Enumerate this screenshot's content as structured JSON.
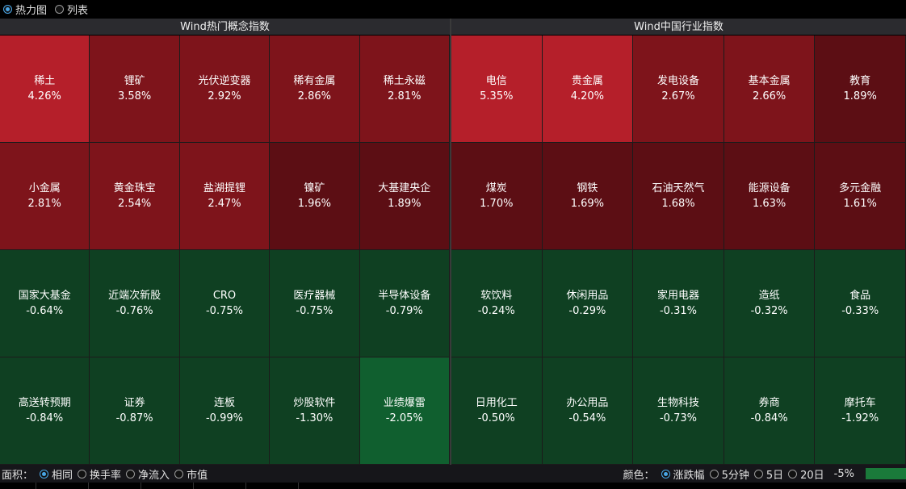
{
  "view_toggle": {
    "options": [
      {
        "label": "热力图",
        "selected": true
      },
      {
        "label": "列表",
        "selected": false
      }
    ]
  },
  "panels": [
    {
      "title": "Wind热门概念指数",
      "cells": [
        {
          "name": "稀土",
          "value": "4.26%",
          "color": "#b51f2a"
        },
        {
          "name": "锂矿",
          "value": "3.58%",
          "color": "#7e141b"
        },
        {
          "name": "光伏逆变器",
          "value": "2.92%",
          "color": "#7e141b"
        },
        {
          "name": "稀有金属",
          "value": "2.86%",
          "color": "#7e141b"
        },
        {
          "name": "稀土永磁",
          "value": "2.81%",
          "color": "#7e141b"
        },
        {
          "name": "小金属",
          "value": "2.81%",
          "color": "#7e141b"
        },
        {
          "name": "黄金珠宝",
          "value": "2.54%",
          "color": "#7e141b"
        },
        {
          "name": "盐湖提锂",
          "value": "2.47%",
          "color": "#7e141b"
        },
        {
          "name": "镍矿",
          "value": "1.96%",
          "color": "#5c0e14"
        },
        {
          "name": "大基建央企",
          "value": "1.89%",
          "color": "#5c0e14"
        },
        {
          "name": "国家大基金",
          "value": "-0.64%",
          "color": "#0f4022"
        },
        {
          "name": "近端次新股",
          "value": "-0.76%",
          "color": "#0f4022"
        },
        {
          "name": "CRO",
          "value": "-0.75%",
          "color": "#0f4022"
        },
        {
          "name": "医疗器械",
          "value": "-0.75%",
          "color": "#0f4022"
        },
        {
          "name": "半导体设备",
          "value": "-0.79%",
          "color": "#0f4022"
        },
        {
          "name": "高送转预期",
          "value": "-0.84%",
          "color": "#0f4022"
        },
        {
          "name": "证券",
          "value": "-0.87%",
          "color": "#0f4022"
        },
        {
          "name": "连板",
          "value": "-0.99%",
          "color": "#0f4022"
        },
        {
          "name": "炒股软件",
          "value": "-1.30%",
          "color": "#0f4022"
        },
        {
          "name": "业绩爆雷",
          "value": "-2.05%",
          "color": "#105f2f"
        }
      ]
    },
    {
      "title": "Wind中国行业指数",
      "cells": [
        {
          "name": "电信",
          "value": "5.35%",
          "color": "#b51f2a"
        },
        {
          "name": "贵金属",
          "value": "4.20%",
          "color": "#b51f2a"
        },
        {
          "name": "发电设备",
          "value": "2.67%",
          "color": "#7e141b"
        },
        {
          "name": "基本金属",
          "value": "2.66%",
          "color": "#7e141b"
        },
        {
          "name": "教育",
          "value": "1.89%",
          "color": "#5c0e14"
        },
        {
          "name": "煤炭",
          "value": "1.70%",
          "color": "#5c0e14"
        },
        {
          "name": "钢铁",
          "value": "1.69%",
          "color": "#5c0e14"
        },
        {
          "name": "石油天然气",
          "value": "1.68%",
          "color": "#5c0e14"
        },
        {
          "name": "能源设备",
          "value": "1.63%",
          "color": "#5c0e14"
        },
        {
          "name": "多元金融",
          "value": "1.61%",
          "color": "#5c0e14"
        },
        {
          "name": "软饮料",
          "value": "-0.24%",
          "color": "#0f4022"
        },
        {
          "name": "休闲用品",
          "value": "-0.29%",
          "color": "#0f4022"
        },
        {
          "name": "家用电器",
          "value": "-0.31%",
          "color": "#0f4022"
        },
        {
          "name": "造纸",
          "value": "-0.32%",
          "color": "#0f4022"
        },
        {
          "name": "食品",
          "value": "-0.33%",
          "color": "#0f4022"
        },
        {
          "name": "日用化工",
          "value": "-0.50%",
          "color": "#0f4022"
        },
        {
          "name": "办公用品",
          "value": "-0.54%",
          "color": "#0f4022"
        },
        {
          "name": "生物科技",
          "value": "-0.73%",
          "color": "#0f4022"
        },
        {
          "name": "券商",
          "value": "-0.84%",
          "color": "#0f4022"
        },
        {
          "name": "摩托车",
          "value": "-1.92%",
          "color": "#0f4022"
        }
      ]
    }
  ],
  "area_options": {
    "label": "面积：",
    "options": [
      {
        "label": "相同",
        "selected": true
      },
      {
        "label": "换手率",
        "selected": false
      },
      {
        "label": "净流入",
        "selected": false
      },
      {
        "label": "市值",
        "selected": false
      }
    ]
  },
  "color_options": {
    "label": "颜色：",
    "options": [
      {
        "label": "涨跌幅",
        "selected": true
      },
      {
        "label": "5分钟",
        "selected": false
      },
      {
        "label": "5日",
        "selected": false
      },
      {
        "label": "20日",
        "selected": false
      }
    ],
    "scale_min": "-5%",
    "scale_color": "#1a7a3a"
  }
}
